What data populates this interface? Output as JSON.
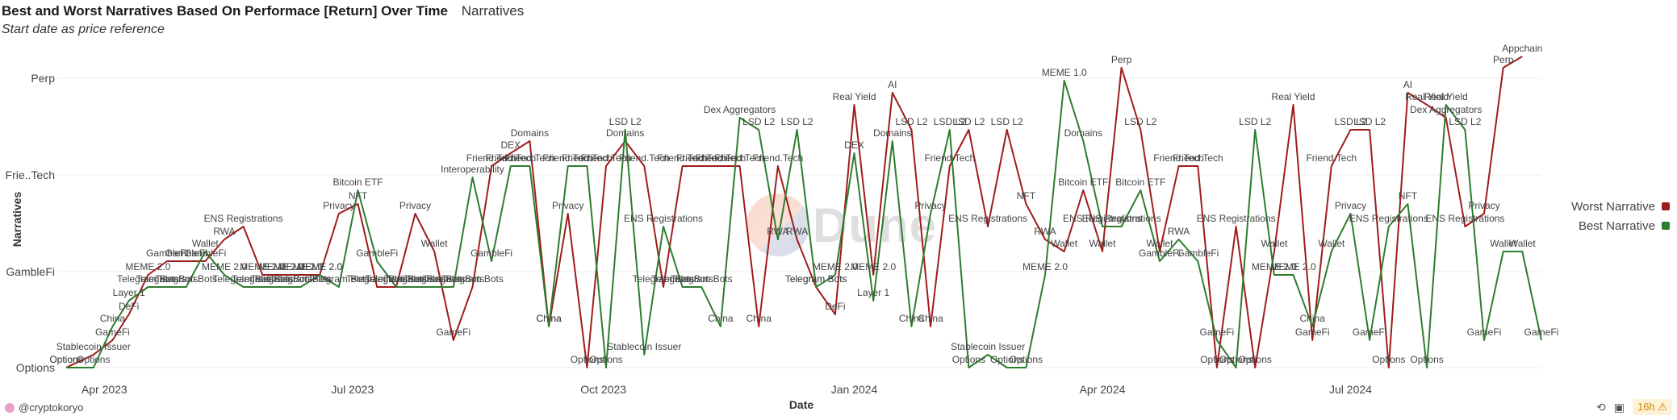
{
  "header": {
    "title": "Best and Worst Narratives Based On Performace [Return] Over Time",
    "tab_label": "Narratives",
    "subtitle": "Start date as price reference"
  },
  "footer": {
    "username": "@cryptokoryo",
    "age_badge": "16h",
    "warning_icon": "warning-icon",
    "share_icon": "share-icon",
    "camera_icon": "camera-icon"
  },
  "watermark": "Dune",
  "chart_data": {
    "type": "line",
    "title": "",
    "xlabel": "Date",
    "ylabel": "Narratives",
    "x_ticks": [
      "Apr 2023",
      "Jul 2023",
      "Oct 2023",
      "Jan 2024",
      "Apr 2024",
      "Jul 2024"
    ],
    "y_ticks": [
      "Options",
      "GambleFi",
      "Frie..Tech",
      "Perp"
    ],
    "y_categories": [
      "Options",
      "Stablecoin Issuer",
      "GameFi",
      "China",
      "DeFi",
      "Layer 1",
      "Telegram Bots",
      "MEME 2.0",
      "GambleFi",
      "Wallet",
      "RWA",
      "ENS Registrations",
      "NFT",
      "Privacy",
      "Bitcoin ETF",
      "Interoperability",
      "Friend.Tech",
      "DEX",
      "Domains",
      "Dex Aggregators",
      "LSD L2",
      "Real Yield",
      "MEME 1.0",
      "AI",
      "Perp",
      "Appchain"
    ],
    "grid": true,
    "legend_position": "right",
    "series": [
      {
        "name": "Worst Narrative",
        "color": "#a01c1c",
        "points": [
          {
            "x": "2023-03-18",
            "y": "Options"
          },
          {
            "x": "2023-03-28",
            "y": "Stablecoin Issuer"
          },
          {
            "x": "2023-04-04",
            "y": "GameFi"
          },
          {
            "x": "2023-04-10",
            "y": "DeFi"
          },
          {
            "x": "2023-04-17",
            "y": "MEME 2.0"
          },
          {
            "x": "2023-04-24",
            "y": "GambleFi"
          },
          {
            "x": "2023-05-01",
            "y": "GambleFi"
          },
          {
            "x": "2023-05-08",
            "y": "GambleFi"
          },
          {
            "x": "2023-05-15",
            "y": "RWA"
          },
          {
            "x": "2023-05-22",
            "y": "ENS Registrations"
          },
          {
            "x": "2023-05-29",
            "y": "MEME 2.0"
          },
          {
            "x": "2023-06-05",
            "y": "MEME 2.0"
          },
          {
            "x": "2023-06-12",
            "y": "MEME 2.0"
          },
          {
            "x": "2023-06-19",
            "y": "MEME 2.0"
          },
          {
            "x": "2023-06-26",
            "y": "Privacy"
          },
          {
            "x": "2023-07-03",
            "y": "NFT"
          },
          {
            "x": "2023-07-10",
            "y": "Telegram Bots"
          },
          {
            "x": "2023-07-17",
            "y": "Telegram Bots"
          },
          {
            "x": "2023-07-24",
            "y": "Privacy"
          },
          {
            "x": "2023-07-31",
            "y": "Wallet"
          },
          {
            "x": "2023-08-07",
            "y": "GameFi"
          },
          {
            "x": "2023-08-14",
            "y": "Telegram Bots"
          },
          {
            "x": "2023-08-21",
            "y": "Friend.Tech"
          },
          {
            "x": "2023-08-28",
            "y": "DEX"
          },
          {
            "x": "2023-09-04",
            "y": "Domains"
          },
          {
            "x": "2023-09-11",
            "y": "China"
          },
          {
            "x": "2023-09-18",
            "y": "Privacy"
          },
          {
            "x": "2023-09-25",
            "y": "Options"
          },
          {
            "x": "2023-10-02",
            "y": "Friend.Tech"
          },
          {
            "x": "2023-10-09",
            "y": "Domains"
          },
          {
            "x": "2023-10-16",
            "y": "Friend.Tech"
          },
          {
            "x": "2023-10-23",
            "y": "Telegram Bots"
          },
          {
            "x": "2023-10-30",
            "y": "Friend.Tech"
          },
          {
            "x": "2023-11-06",
            "y": "Friend.Tech"
          },
          {
            "x": "2023-11-13",
            "y": "Friend.Tech"
          },
          {
            "x": "2023-11-20",
            "y": "Friend.Tech"
          },
          {
            "x": "2023-11-27",
            "y": "China"
          },
          {
            "x": "2023-12-04",
            "y": "Friend.Tech"
          },
          {
            "x": "2023-12-11",
            "y": "RWA"
          },
          {
            "x": "2023-12-18",
            "y": "Telegram Bots"
          },
          {
            "x": "2023-12-25",
            "y": "DeFi"
          },
          {
            "x": "2024-01-01",
            "y": "Real Yield"
          },
          {
            "x": "2024-01-08",
            "y": "MEME 2.0"
          },
          {
            "x": "2024-01-15",
            "y": "AI"
          },
          {
            "x": "2024-01-22",
            "y": "LSD L2"
          },
          {
            "x": "2024-01-29",
            "y": "China"
          },
          {
            "x": "2024-02-05",
            "y": "Friend.Tech"
          },
          {
            "x": "2024-02-12",
            "y": "LSD L2"
          },
          {
            "x": "2024-02-19",
            "y": "ENS Registrations"
          },
          {
            "x": "2024-02-26",
            "y": "LSD L2"
          },
          {
            "x": "2024-03-04",
            "y": "NFT"
          },
          {
            "x": "2024-03-11",
            "y": "RWA"
          },
          {
            "x": "2024-03-18",
            "y": "Wallet"
          },
          {
            "x": "2024-03-25",
            "y": "Bitcoin ETF"
          },
          {
            "x": "2024-04-01",
            "y": "Wallet"
          },
          {
            "x": "2024-04-08",
            "y": "Perp"
          },
          {
            "x": "2024-04-15",
            "y": "LSD L2"
          },
          {
            "x": "2024-04-22",
            "y": "Wallet"
          },
          {
            "x": "2024-04-29",
            "y": "Friend.Tech"
          },
          {
            "x": "2024-05-06",
            "y": "Friend.Tech"
          },
          {
            "x": "2024-05-13",
            "y": "Options"
          },
          {
            "x": "2024-05-20",
            "y": "ENS Registrations"
          },
          {
            "x": "2024-05-27",
            "y": "Options"
          },
          {
            "x": "2024-06-03",
            "y": "Wallet"
          },
          {
            "x": "2024-06-10",
            "y": "Real Yield"
          },
          {
            "x": "2024-06-17",
            "y": "GameFi"
          },
          {
            "x": "2024-06-24",
            "y": "Friend.Tech"
          },
          {
            "x": "2024-07-01",
            "y": "LSD L2"
          },
          {
            "x": "2024-07-08",
            "y": "LSD L2"
          },
          {
            "x": "2024-07-15",
            "y": "Options"
          },
          {
            "x": "2024-07-22",
            "y": "AI"
          },
          {
            "x": "2024-07-29",
            "y": "Real Yield"
          },
          {
            "x": "2024-08-05",
            "y": "Dex Aggregators"
          },
          {
            "x": "2024-08-12",
            "y": "ENS Registrations"
          },
          {
            "x": "2024-08-19",
            "y": "Privacy"
          },
          {
            "x": "2024-08-26",
            "y": "Perp"
          },
          {
            "x": "2024-09-02",
            "y": "Appchain"
          }
        ]
      },
      {
        "name": "Best Narrative",
        "color": "#2e7d2e",
        "points": [
          {
            "x": "2023-03-18",
            "y": "Options"
          },
          {
            "x": "2023-03-28",
            "y": "Options"
          },
          {
            "x": "2023-04-04",
            "y": "China"
          },
          {
            "x": "2023-04-10",
            "y": "Layer 1"
          },
          {
            "x": "2023-04-17",
            "y": "Telegram Bots"
          },
          {
            "x": "2023-04-24",
            "y": "Telegram Bots"
          },
          {
            "x": "2023-05-01",
            "y": "Telegram Bots"
          },
          {
            "x": "2023-05-08",
            "y": "Wallet"
          },
          {
            "x": "2023-05-15",
            "y": "MEME 2.0"
          },
          {
            "x": "2023-05-22",
            "y": "Telegram Bots"
          },
          {
            "x": "2023-05-29",
            "y": "Telegram Bots"
          },
          {
            "x": "2023-06-05",
            "y": "Telegram Bots"
          },
          {
            "x": "2023-06-12",
            "y": "Telegram Bots"
          },
          {
            "x": "2023-06-19",
            "y": "MEME 2.0"
          },
          {
            "x": "2023-06-26",
            "y": "Telegram Bots"
          },
          {
            "x": "2023-07-03",
            "y": "Bitcoin ETF"
          },
          {
            "x": "2023-07-10",
            "y": "GambleFi"
          },
          {
            "x": "2023-07-17",
            "y": "Telegram Bots"
          },
          {
            "x": "2023-07-24",
            "y": "Telegram Bots"
          },
          {
            "x": "2023-07-31",
            "y": "Telegram Bots"
          },
          {
            "x": "2023-08-07",
            "y": "Telegram Bots"
          },
          {
            "x": "2023-08-14",
            "y": "Interoperability"
          },
          {
            "x": "2023-08-21",
            "y": "GambleFi"
          },
          {
            "x": "2023-08-28",
            "y": "Friend.Tech"
          },
          {
            "x": "2023-09-04",
            "y": "Friend.Tech"
          },
          {
            "x": "2023-09-11",
            "y": "China"
          },
          {
            "x": "2023-09-18",
            "y": "Friend.Tech"
          },
          {
            "x": "2023-09-25",
            "y": "Friend.Tech"
          },
          {
            "x": "2023-10-02",
            "y": "Options"
          },
          {
            "x": "2023-10-09",
            "y": "LSD L2"
          },
          {
            "x": "2023-10-16",
            "y": "Stablecoin Issuer"
          },
          {
            "x": "2023-10-23",
            "y": "ENS Registrations"
          },
          {
            "x": "2023-10-30",
            "y": "Telegram Bots"
          },
          {
            "x": "2023-11-06",
            "y": "Telegram Bots"
          },
          {
            "x": "2023-11-13",
            "y": "China"
          },
          {
            "x": "2023-11-20",
            "y": "Dex Aggregators"
          },
          {
            "x": "2023-11-27",
            "y": "LSD L2"
          },
          {
            "x": "2023-12-04",
            "y": "RWA"
          },
          {
            "x": "2023-12-11",
            "y": "LSD L2"
          },
          {
            "x": "2023-12-18",
            "y": "Telegram Bots"
          },
          {
            "x": "2023-12-25",
            "y": "MEME 2.0"
          },
          {
            "x": "2024-01-01",
            "y": "DEX"
          },
          {
            "x": "2024-01-08",
            "y": "Layer 1"
          },
          {
            "x": "2024-01-15",
            "y": "Domains"
          },
          {
            "x": "2024-01-22",
            "y": "China"
          },
          {
            "x": "2024-01-29",
            "y": "Privacy"
          },
          {
            "x": "2024-02-05",
            "y": "LSD L2"
          },
          {
            "x": "2024-02-12",
            "y": "Options"
          },
          {
            "x": "2024-02-19",
            "y": "Stablecoin Issuer"
          },
          {
            "x": "2024-02-26",
            "y": "Options"
          },
          {
            "x": "2024-03-04",
            "y": "Options"
          },
          {
            "x": "2024-03-11",
            "y": "MEME 2.0"
          },
          {
            "x": "2024-03-18",
            "y": "MEME 1.0"
          },
          {
            "x": "2024-03-25",
            "y": "Domains"
          },
          {
            "x": "2024-04-01",
            "y": "ENS Registrations"
          },
          {
            "x": "2024-04-08",
            "y": "ENS Registrations"
          },
          {
            "x": "2024-04-15",
            "y": "Bitcoin ETF"
          },
          {
            "x": "2024-04-22",
            "y": "GambleFi"
          },
          {
            "x": "2024-04-29",
            "y": "RWA"
          },
          {
            "x": "2024-05-06",
            "y": "GambleFi"
          },
          {
            "x": "2024-05-13",
            "y": "GameFi"
          },
          {
            "x": "2024-05-20",
            "y": "Options"
          },
          {
            "x": "2024-05-27",
            "y": "LSD L2"
          },
          {
            "x": "2024-06-03",
            "y": "MEME 2.0"
          },
          {
            "x": "2024-06-10",
            "y": "MEME 2.0"
          },
          {
            "x": "2024-06-17",
            "y": "China"
          },
          {
            "x": "2024-06-24",
            "y": "Wallet"
          },
          {
            "x": "2024-07-01",
            "y": "Privacy"
          },
          {
            "x": "2024-07-08",
            "y": "GameFi"
          },
          {
            "x": "2024-07-15",
            "y": "ENS Registrations"
          },
          {
            "x": "2024-07-22",
            "y": "NFT"
          },
          {
            "x": "2024-07-29",
            "y": "Options"
          },
          {
            "x": "2024-08-05",
            "y": "Real Yield"
          },
          {
            "x": "2024-08-12",
            "y": "LSD L2"
          },
          {
            "x": "2024-08-19",
            "y": "GameFi"
          },
          {
            "x": "2024-08-26",
            "y": "Wallet"
          },
          {
            "x": "2024-09-02",
            "y": "Wallet"
          },
          {
            "x": "2024-09-09",
            "y": "GameFi"
          }
        ]
      }
    ]
  }
}
